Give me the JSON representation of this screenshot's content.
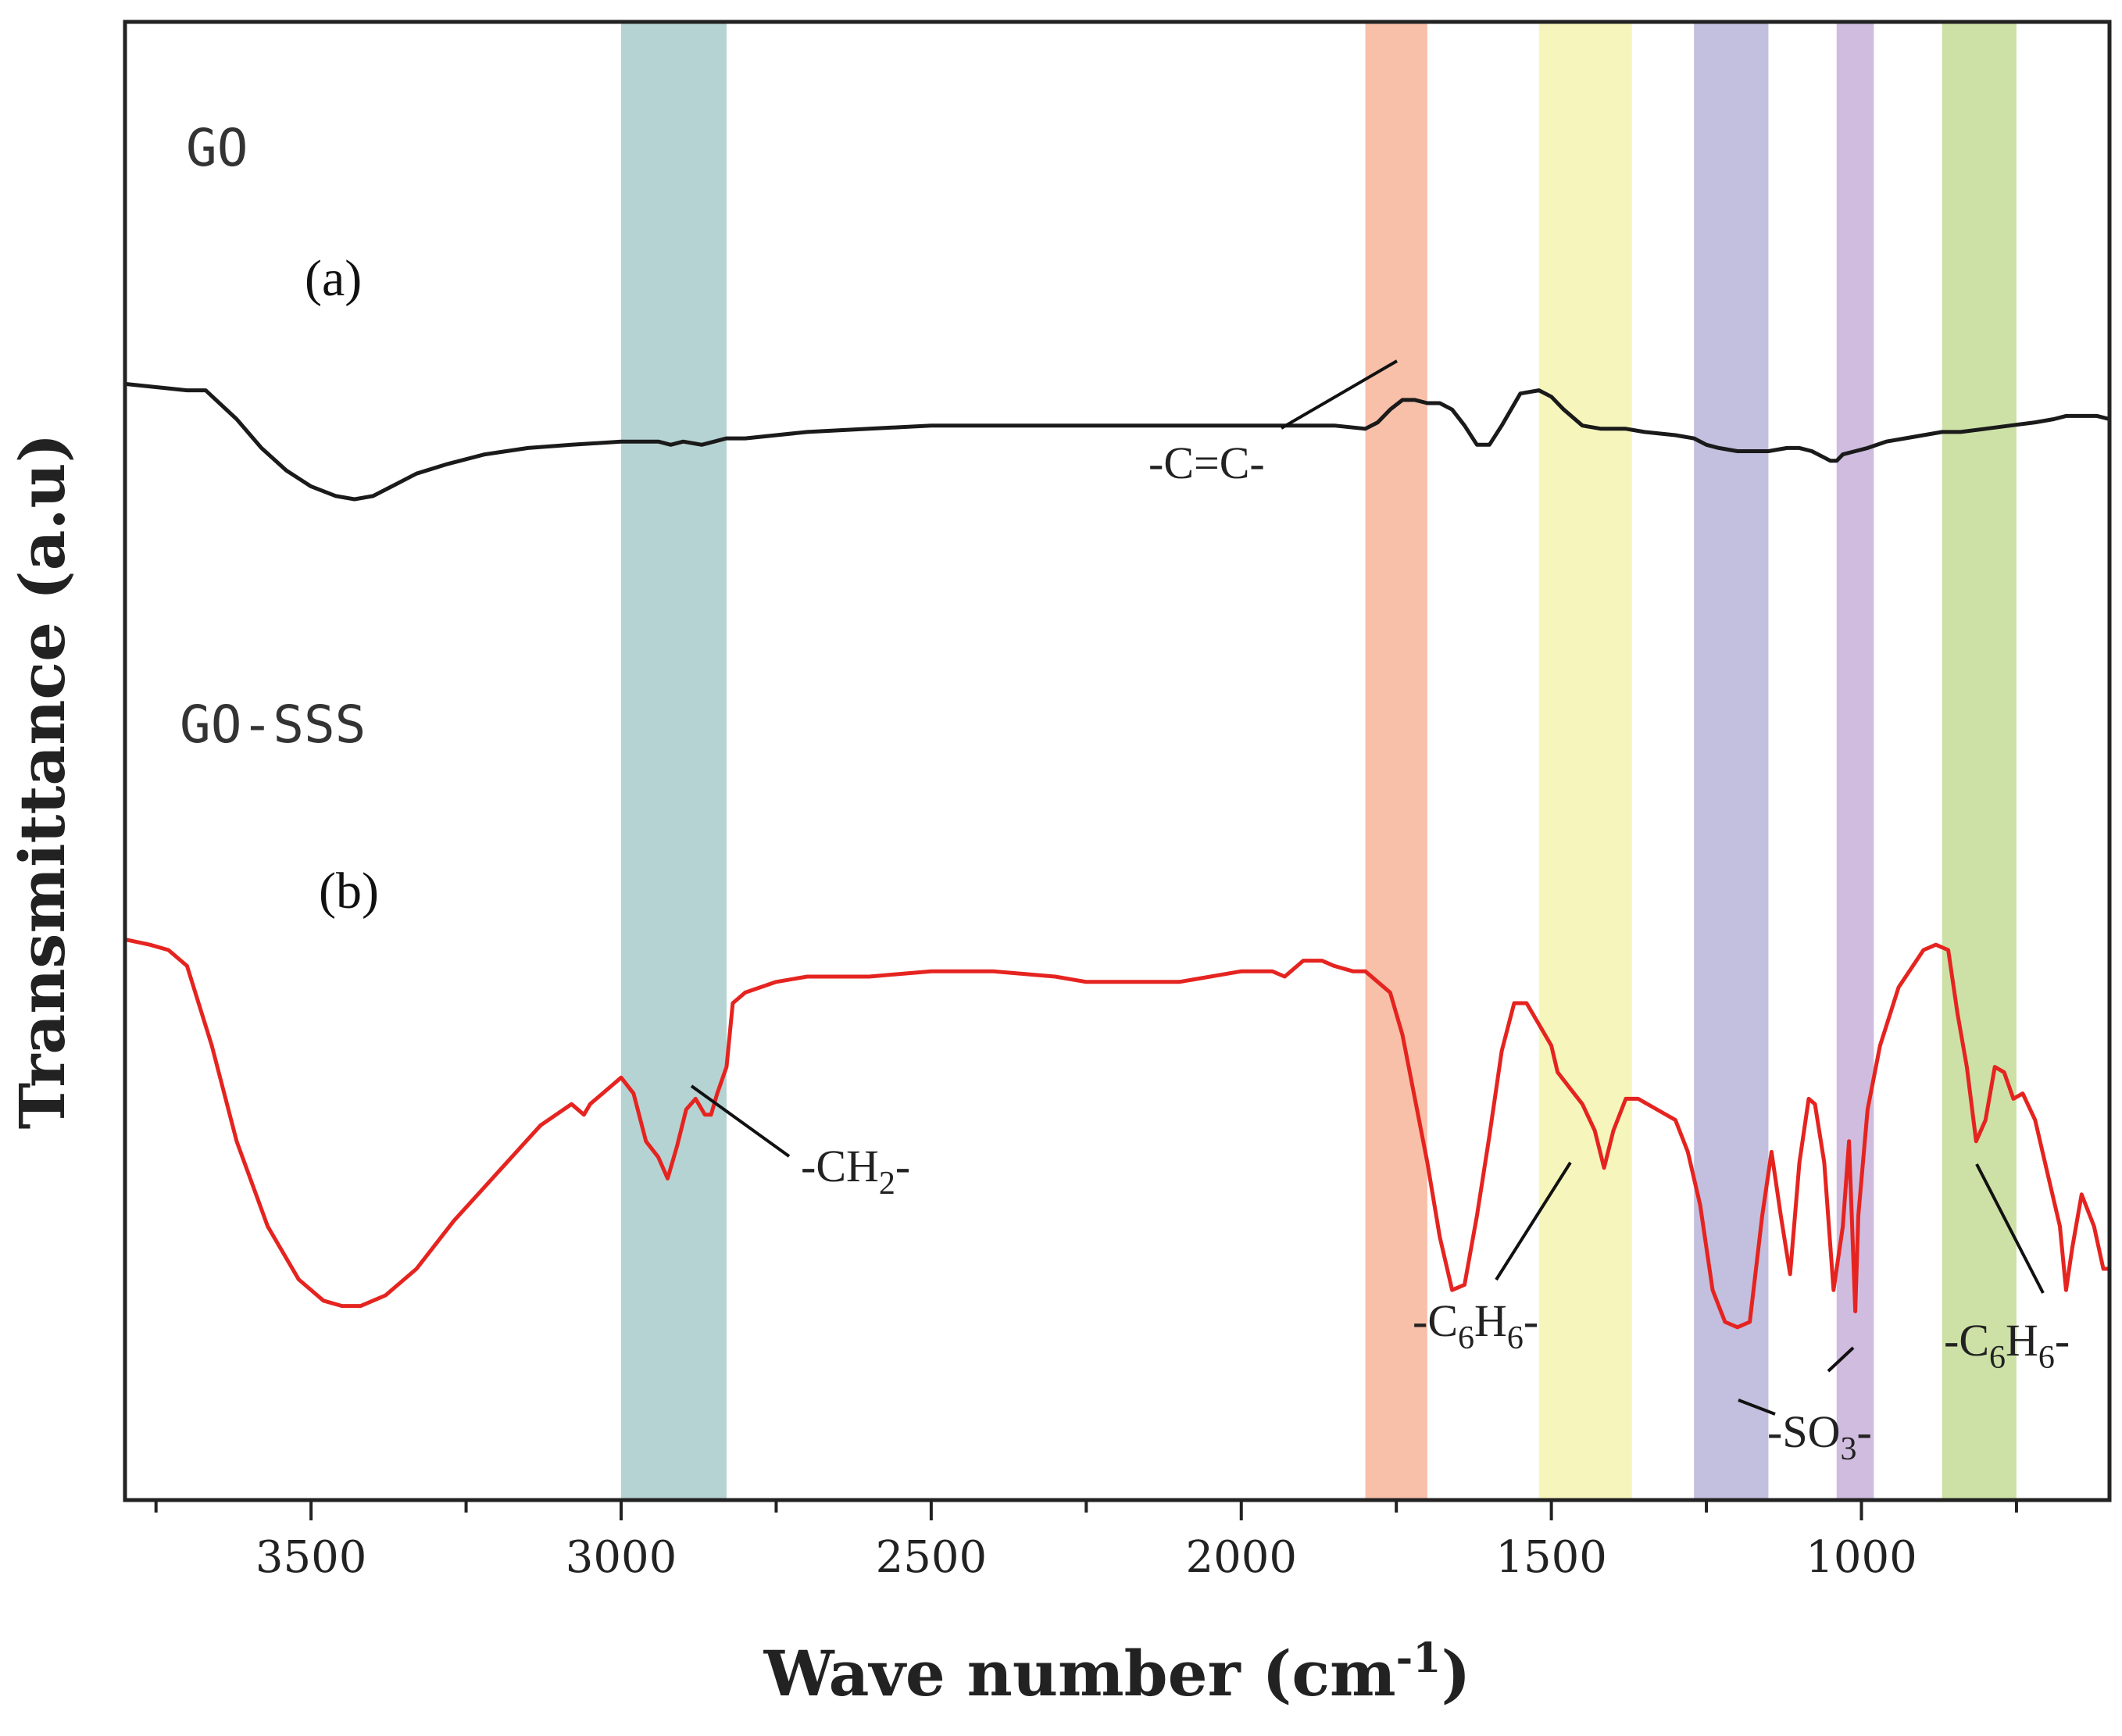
{
  "chart_data": {
    "type": "line",
    "title": "",
    "xlabel": "Wave number (cm",
    "xlabel_sup": "-1",
    "xlabel_end": ")",
    "ylabel": "Transmittance (a.u)",
    "xlim": [
      3800,
      600
    ],
    "x_ticks": [
      3500,
      3000,
      2500,
      2000,
      1500,
      1000
    ],
    "y_ticks_visible": false,
    "bands": [
      {
        "name": "ch2-band",
        "from": 3000,
        "to": 2830,
        "color": "#a9cbcb"
      },
      {
        "name": "cc-band",
        "from": 1800,
        "to": 1700,
        "color": "#f7b59a"
      },
      {
        "name": "c6h6-band-1",
        "from": 1520,
        "to": 1370,
        "color": "#f4f4b0"
      },
      {
        "name": "so3-band-1",
        "from": 1270,
        "to": 1150,
        "color": "#b8b4d8"
      },
      {
        "name": "so3-band-2",
        "from": 1040,
        "to": 980,
        "color": "#c8b0d8"
      },
      {
        "name": "c6h6-band-2",
        "from": 870,
        "to": 750,
        "color": "#c4dc98"
      }
    ],
    "series": [
      {
        "name": "GO",
        "panel": "(a)",
        "color": "#1a1a1a",
        "x": [
          3800,
          3700,
          3670,
          3620,
          3580,
          3540,
          3500,
          3460,
          3430,
          3400,
          3370,
          3330,
          3280,
          3220,
          3150,
          3080,
          3000,
          2940,
          2920,
          2900,
          2870,
          2850,
          2830,
          2800,
          2700,
          2600,
          2500,
          2400,
          2300,
          2200,
          2100,
          2000,
          1950,
          1900,
          1850,
          1800,
          1780,
          1760,
          1740,
          1720,
          1700,
          1680,
          1660,
          1640,
          1620,
          1600,
          1580,
          1550,
          1520,
          1500,
          1480,
          1450,
          1420,
          1400,
          1380,
          1350,
          1300,
          1270,
          1250,
          1230,
          1200,
          1180,
          1150,
          1120,
          1100,
          1080,
          1060,
          1050,
          1040,
          1030,
          1010,
          990,
          960,
          930,
          900,
          870,
          840,
          800,
          760,
          720,
          690,
          670,
          650,
          620,
          600
        ],
        "y": [
          46,
          44,
          44,
          35,
          26,
          19,
          14,
          11,
          10,
          11,
          14,
          18,
          21,
          24,
          26,
          27,
          28,
          28,
          27,
          28,
          27,
          28,
          29,
          29,
          31,
          32,
          33,
          33,
          33,
          33,
          33,
          33,
          33,
          33,
          33,
          32,
          34,
          38,
          41,
          41,
          40,
          40,
          38,
          33,
          27,
          27,
          33,
          43,
          44,
          42,
          38,
          33,
          32,
          32,
          32,
          31,
          30,
          29,
          27,
          26,
          25,
          25,
          25,
          26,
          26,
          25,
          23,
          22,
          22,
          24,
          25,
          26,
          28,
          29,
          30,
          31,
          31,
          32,
          33,
          34,
          35,
          36,
          36,
          36,
          35
        ]
      },
      {
        "name": "GO-SSS",
        "panel": "(b)",
        "color": "#e52420",
        "x": [
          3800,
          3760,
          3730,
          3700,
          3660,
          3620,
          3570,
          3520,
          3480,
          3450,
          3420,
          3380,
          3330,
          3270,
          3200,
          3130,
          3080,
          3060,
          3050,
          3030,
          3000,
          2980,
          2960,
          2940,
          2925,
          2910,
          2895,
          2880,
          2865,
          2855,
          2845,
          2830,
          2820,
          2800,
          2750,
          2700,
          2600,
          2500,
          2400,
          2300,
          2250,
          2200,
          2100,
          2000,
          1950,
          1930,
          1900,
          1870,
          1850,
          1820,
          1800,
          1780,
          1760,
          1740,
          1720,
          1700,
          1680,
          1660,
          1640,
          1620,
          1600,
          1580,
          1560,
          1540,
          1520,
          1500,
          1490,
          1470,
          1450,
          1430,
          1415,
          1400,
          1380,
          1360,
          1330,
          1300,
          1280,
          1260,
          1240,
          1220,
          1200,
          1180,
          1160,
          1145,
          1130,
          1115,
          1100,
          1085,
          1075,
          1060,
          1045,
          1030,
          1020,
          1010,
          1005,
          990,
          970,
          940,
          900,
          880,
          860,
          845,
          830,
          815,
          800,
          785,
          770,
          755,
          740,
          720,
          700,
          680,
          670,
          660,
          645,
          625,
          610,
          600
        ],
        "y": [
          82,
          81,
          80,
          77,
          62,
          44,
          28,
          18,
          14,
          13,
          13,
          15,
          20,
          29,
          38,
          47,
          51,
          49,
          51,
          53,
          56,
          53,
          44,
          41,
          37,
          43,
          50,
          52,
          49,
          49,
          53,
          58,
          70,
          72,
          74,
          75,
          75,
          76,
          76,
          75,
          74,
          74,
          74,
          76,
          76,
          75,
          78,
          78,
          77,
          76,
          76,
          74,
          72,
          64,
          52,
          40,
          26,
          16,
          17,
          30,
          45,
          61,
          70,
          70,
          66,
          62,
          57,
          54,
          51,
          46,
          39,
          46,
          52,
          52,
          50,
          48,
          42,
          32,
          16,
          10,
          9,
          10,
          30,
          42,
          30,
          19,
          40,
          52,
          51,
          40,
          16,
          28,
          44,
          12,
          30,
          50,
          62,
          73,
          80,
          81,
          80,
          68,
          58,
          44,
          48,
          58,
          57,
          52,
          53,
          48,
          38,
          28,
          16,
          24,
          34,
          28,
          20,
          20
        ]
      }
    ],
    "labels": [
      {
        "id": "go",
        "text": "GO"
      },
      {
        "id": "a",
        "text": "(a)"
      },
      {
        "id": "gosss",
        "text": "GO-SSS"
      },
      {
        "id": "b",
        "text": "(b)"
      }
    ],
    "annotations": [
      {
        "id": "cc",
        "text": "-C=C-"
      },
      {
        "id": "ch2",
        "text": "-CH",
        "sub": "2",
        "end": "-"
      },
      {
        "id": "c6h6a",
        "text": "-C",
        "sub": "6",
        "mid": "H",
        "sub2": "6",
        "end": "-"
      },
      {
        "id": "so3",
        "text": "-SO",
        "sub": "3",
        "end": "-"
      },
      {
        "id": "c6h6b",
        "text": "-C",
        "sub": "6",
        "mid": "H",
        "sub2": "6",
        "end": "-"
      }
    ]
  }
}
